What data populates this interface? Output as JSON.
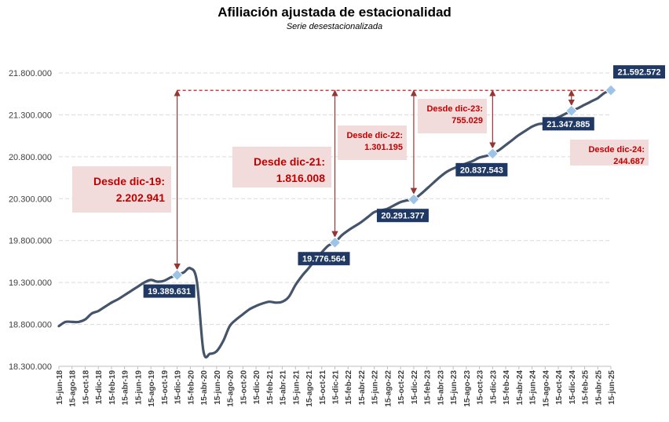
{
  "chart_data": {
    "type": "line",
    "title": "Afiliación ajustada de estacionalidad",
    "subtitle": "Serie desestacionalizada",
    "ylim": [
      18300000,
      21800000
    ],
    "y_ticks": [
      "18.300.000",
      "18.800.000",
      "19.300.000",
      "19.800.000",
      "20.300.000",
      "20.800.000",
      "21.300.000",
      "21.800.000"
    ],
    "x_ticks": [
      "15-jun-18",
      "15-ago-18",
      "15-oct-18",
      "15-dic-18",
      "15-feb-19",
      "15-abr-19",
      "15-jun-19",
      "15-ago-19",
      "15-oct-19",
      "15-dic-19",
      "15-feb-20",
      "15-abr-20",
      "15-jun-20",
      "15-ago-20",
      "15-oct-20",
      "15-dic-20",
      "15-feb-21",
      "15-abr-21",
      "15-jun-21",
      "15-ago-21",
      "15-oct-21",
      "15-dic-21",
      "15-feb-22",
      "15-abr-22",
      "15-jun-22",
      "15-ago-22",
      "15-oct-22",
      "15-dic-22",
      "15-feb-23",
      "15-abr-23",
      "15-jun-23",
      "15-ago-23",
      "15-oct-23",
      "15-dic-23",
      "15-feb-24",
      "15-abr-24",
      "15-jun-24",
      "15-ago-24",
      "15-oct-24",
      "15-dic-24",
      "15-feb-25",
      "15-abr-25",
      "15-jun-25"
    ],
    "grid": true,
    "series": [
      {
        "color": "#44546a",
        "points": [
          [
            "15-jun-18",
            18780000
          ],
          [
            "15-jul-18",
            18830000
          ],
          [
            "15-ago-18",
            18830000
          ],
          [
            "15-sep-18",
            18830000
          ],
          [
            "15-oct-18",
            18860000
          ],
          [
            "15-nov-18",
            18930000
          ],
          [
            "15-dic-18",
            18960000
          ],
          [
            "15-ene-19",
            19010000
          ],
          [
            "15-feb-19",
            19060000
          ],
          [
            "15-mar-19",
            19100000
          ],
          [
            "15-abr-19",
            19150000
          ],
          [
            "15-may-19",
            19200000
          ],
          [
            "15-jun-19",
            19250000
          ],
          [
            "15-jul-19",
            19300000
          ],
          [
            "15-ago-19",
            19330000
          ],
          [
            "15-sep-19",
            19310000
          ],
          [
            "15-oct-19",
            19320000
          ],
          [
            "15-nov-19",
            19360000
          ],
          [
            "15-dic-19",
            19389631
          ],
          [
            "15-ene-20",
            19420000
          ],
          [
            "15-feb-20",
            19470000
          ],
          [
            "15-mar-20",
            19310000
          ],
          [
            "15-abr-20",
            18480000
          ],
          [
            "15-may-20",
            18450000
          ],
          [
            "15-jun-20",
            18480000
          ],
          [
            "15-jul-20",
            18600000
          ],
          [
            "15-ago-20",
            18780000
          ],
          [
            "15-sep-20",
            18860000
          ],
          [
            "15-oct-20",
            18920000
          ],
          [
            "15-nov-20",
            18980000
          ],
          [
            "15-dic-20",
            19020000
          ],
          [
            "15-ene-21",
            19050000
          ],
          [
            "15-feb-21",
            19070000
          ],
          [
            "15-mar-21",
            19060000
          ],
          [
            "15-abr-21",
            19070000
          ],
          [
            "15-may-21",
            19130000
          ],
          [
            "15-jun-21",
            19270000
          ],
          [
            "15-jul-21",
            19380000
          ],
          [
            "15-ago-21",
            19470000
          ],
          [
            "15-sep-21",
            19570000
          ],
          [
            "15-oct-21",
            19660000
          ],
          [
            "15-nov-21",
            19740000
          ],
          [
            "15-dic-21",
            19776564
          ],
          [
            "15-ene-22",
            19860000
          ],
          [
            "15-feb-22",
            19920000
          ],
          [
            "15-mar-22",
            19970000
          ],
          [
            "15-abr-22",
            20020000
          ],
          [
            "15-may-22",
            20080000
          ],
          [
            "15-jun-22",
            20140000
          ],
          [
            "15-jul-22",
            20160000
          ],
          [
            "15-ago-22",
            20180000
          ],
          [
            "15-sep-22",
            20220000
          ],
          [
            "15-oct-22",
            20260000
          ],
          [
            "15-nov-22",
            20280000
          ],
          [
            "15-dic-22",
            20291377
          ],
          [
            "15-ene-23",
            20350000
          ],
          [
            "15-feb-23",
            20420000
          ],
          [
            "15-mar-23",
            20490000
          ],
          [
            "15-abr-23",
            20560000
          ],
          [
            "15-may-23",
            20620000
          ],
          [
            "15-jun-23",
            20660000
          ],
          [
            "15-jul-23",
            20690000
          ],
          [
            "15-ago-23",
            20720000
          ],
          [
            "15-sep-23",
            20750000
          ],
          [
            "15-oct-23",
            20790000
          ],
          [
            "15-nov-23",
            20810000
          ],
          [
            "15-dic-23",
            20837543
          ],
          [
            "15-ene-24",
            20880000
          ],
          [
            "15-feb-24",
            20940000
          ],
          [
            "15-mar-24",
            21000000
          ],
          [
            "15-abr-24",
            21060000
          ],
          [
            "15-may-24",
            21110000
          ],
          [
            "15-jun-24",
            21160000
          ],
          [
            "15-jul-24",
            21190000
          ],
          [
            "15-ago-24",
            21200000
          ],
          [
            "15-sep-24",
            21240000
          ],
          [
            "15-oct-24",
            21270000
          ],
          [
            "15-nov-24",
            21310000
          ],
          [
            "15-dic-24",
            21347885
          ],
          [
            "15-ene-25",
            21380000
          ],
          [
            "15-feb-25",
            21420000
          ],
          [
            "15-mar-25",
            21460000
          ],
          [
            "15-abr-25",
            21500000
          ],
          [
            "15-may-25",
            21560000
          ],
          [
            "15-jun-25",
            21592572
          ]
        ]
      }
    ],
    "markers": [
      {
        "x": "15-dic-19",
        "y": 19389631,
        "label": "19.389.631",
        "label_anchor": "below"
      },
      {
        "x": "15-dic-21",
        "y": 19776564,
        "label": "19.776.564",
        "label_anchor": "below"
      },
      {
        "x": "15-dic-22",
        "y": 20291377,
        "label": "20.291.377",
        "label_anchor": "below"
      },
      {
        "x": "15-dic-23",
        "y": 20837543,
        "label": "20.837.543",
        "label_anchor": "below"
      },
      {
        "x": "15-dic-24",
        "y": 21347885,
        "label": "21.347.885",
        "label_anchor": "below"
      },
      {
        "x": "15-jun-25",
        "y": 21592572,
        "label": "21.592.572",
        "label_anchor": "above"
      }
    ],
    "reference_line": {
      "y": 21592572,
      "color": "#c00000",
      "style": "dashed"
    },
    "annotations": [
      {
        "from_x": "15-dic-19",
        "line1": "Desde dic-19:",
        "line2": "2.202.941",
        "size": "large"
      },
      {
        "from_x": "15-dic-21",
        "line1": "Desde dic-21:",
        "line2": "1.816.008",
        "size": "large"
      },
      {
        "from_x": "15-dic-22",
        "line1": "Desde dic-22:",
        "line2": "1.301.195",
        "size": "small"
      },
      {
        "from_x": "15-dic-23",
        "line1": "Desde dic-23:",
        "line2": "755.029",
        "size": "small"
      },
      {
        "from_x": "15-dic-24",
        "line1": "Desde dic-24:",
        "line2": "244.687",
        "size": "small"
      }
    ],
    "colors": {
      "line": "#44546a",
      "marker": "#9dc3e6",
      "label_bg": "#1f3864",
      "arrow": "#943634",
      "annotation_text": "#c00000",
      "annotation_bg": "#f2dcdb",
      "grid": "#d9d9d9"
    }
  }
}
